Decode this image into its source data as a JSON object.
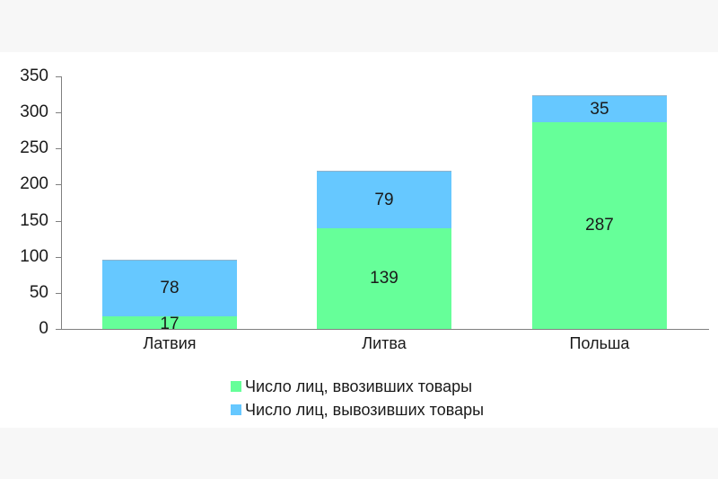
{
  "chart_data": {
    "type": "bar",
    "stacked": true,
    "title": "",
    "xlabel": "",
    "ylabel": "",
    "ylim": [
      0,
      350
    ],
    "yticks": [
      0,
      50,
      100,
      150,
      200,
      250,
      300,
      350
    ],
    "ytick_labels": [
      "0",
      "50",
      "100",
      "150",
      "200",
      "250",
      "300",
      "350"
    ],
    "grid": false,
    "legend_position": "bottom",
    "categories": [
      "Латвия",
      "Литва",
      "Польша"
    ],
    "series": [
      {
        "name": "Число лиц, ввозивших товары",
        "color": "#66ff99",
        "values": [
          17,
          139,
          287
        ]
      },
      {
        "name": "Число лиц, вывозивших товары",
        "color": "#66c8ff",
        "values": [
          78,
          79,
          35
        ]
      }
    ]
  }
}
